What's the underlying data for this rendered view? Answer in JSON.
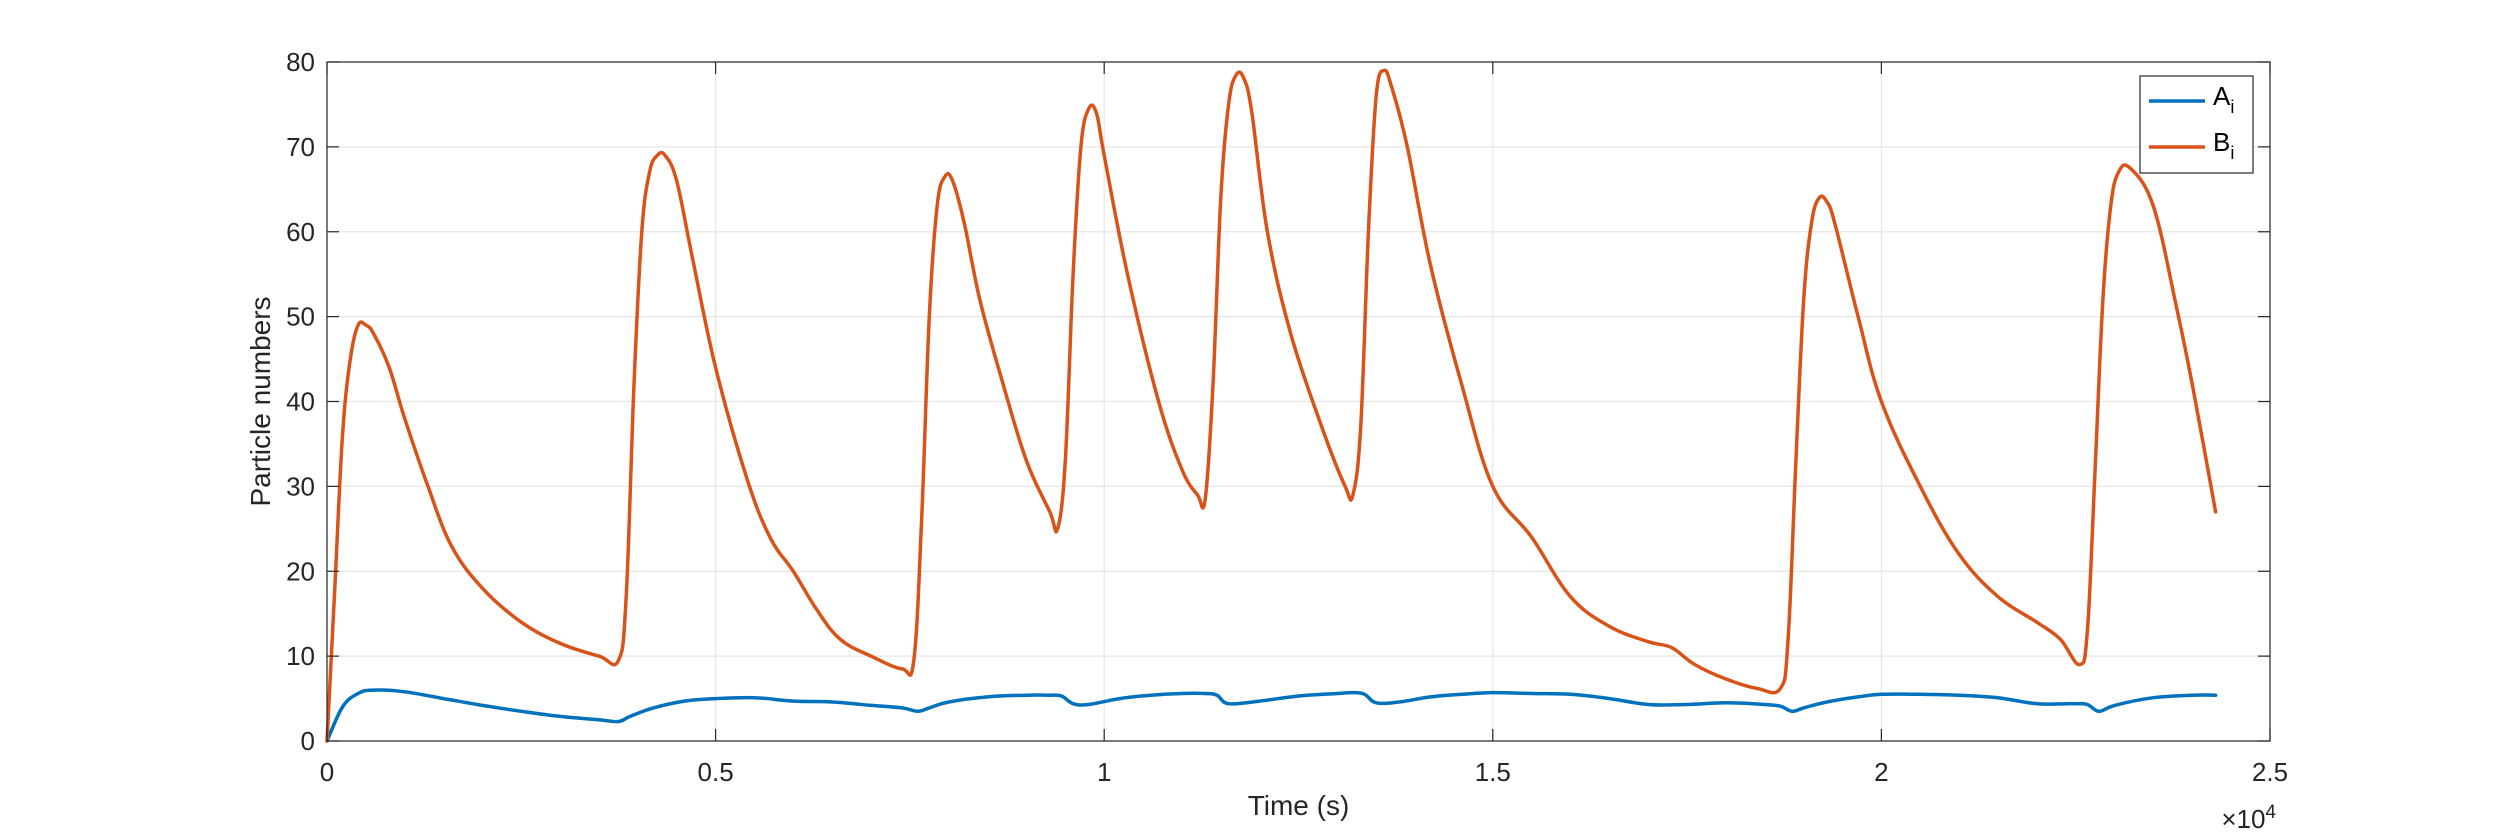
{
  "chart_data": {
    "type": "line",
    "xlabel": "Time (s)",
    "ylabel": "Particle numbers",
    "x_exponent_label": "×10",
    "x_exponent_power": "4",
    "xlim": [
      0,
      25000
    ],
    "ylim": [
      0,
      80
    ],
    "xticks": [
      0,
      5000,
      10000,
      15000,
      20000,
      25000
    ],
    "xtick_labels": [
      "0",
      "0.5",
      "1",
      "1.5",
      "2",
      "2.5"
    ],
    "yticks": [
      0,
      10,
      20,
      30,
      40,
      50,
      60,
      70,
      80
    ],
    "ytick_labels": [
      "0",
      "10",
      "20",
      "30",
      "40",
      "50",
      "60",
      "70",
      "80"
    ],
    "grid": true,
    "legend_position": "top-right",
    "series": [
      {
        "name": "A",
        "subscript": "i",
        "color": "#0072BD",
        "x": [
          0,
          200,
          400,
          600,
          1000,
          1500,
          2000,
          2500,
          3000,
          3500,
          3750,
          3900,
          4200,
          4600,
          5000,
          5500,
          6000,
          6500,
          7000,
          7400,
          7600,
          7750,
          8000,
          8500,
          9000,
          9300,
          9450,
          9600,
          9800,
          10200,
          10600,
          11000,
          11300,
          11450,
          11600,
          12000,
          12500,
          13000,
          13200,
          13350,
          13500,
          13800,
          14200,
          14600,
          15000,
          15500,
          16000,
          16500,
          17000,
          17500,
          18000,
          18500,
          18700,
          18850,
          19000,
          19300,
          19700,
          20000,
          20500,
          21000,
          21500,
          22000,
          22500,
          22650,
          22800,
          23000,
          23500,
          24000,
          24300
        ],
        "y": [
          0,
          4.0,
          5.6,
          6.0,
          5.8,
          5.0,
          4.2,
          3.5,
          2.9,
          2.5,
          2.3,
          2.9,
          3.9,
          4.7,
          5.0,
          5.1,
          4.7,
          4.6,
          4.2,
          3.9,
          3.5,
          3.9,
          4.6,
          5.2,
          5.4,
          5.4,
          5.3,
          4.4,
          4.3,
          5.0,
          5.4,
          5.6,
          5.6,
          5.4,
          4.4,
          4.7,
          5.3,
          5.6,
          5.7,
          5.5,
          4.5,
          4.6,
          5.2,
          5.5,
          5.7,
          5.6,
          5.5,
          5.0,
          4.3,
          4.3,
          4.5,
          4.3,
          4.1,
          3.5,
          3.9,
          4.6,
          5.2,
          5.5,
          5.5,
          5.4,
          5.1,
          4.4,
          4.4,
          4.3,
          3.5,
          4.2,
          5.1,
          5.4,
          5.4
        ]
      },
      {
        "name": "B",
        "subscript": "i",
        "color": "#D95319",
        "x": [
          0,
          100,
          200,
          300,
          400,
          500,
          600,
          800,
          1000,
          1300,
          1600,
          2000,
          2500,
          3000,
          3500,
          3750,
          3850,
          3950,
          4050,
          4150,
          4250,
          4350,
          4500,
          4700,
          5000,
          5400,
          5700,
          6000,
          6300,
          6600,
          7000,
          7400,
          7550,
          7650,
          7750,
          7850,
          7950,
          8050,
          8200,
          8400,
          8700,
          9000,
          9300,
          9400,
          9500,
          9600,
          9700,
          9800,
          9900,
          10000,
          10300,
          10700,
          11000,
          11200,
          11300,
          11400,
          11500,
          11600,
          11700,
          11800,
          11900,
          12100,
          12400,
          12800,
          13100,
          13200,
          13300,
          13400,
          13500,
          13600,
          13700,
          13900,
          14200,
          14600,
          15000,
          15500,
          16000,
          16500,
          17000,
          17300,
          17600,
          18000,
          18400,
          18700,
          18800,
          18900,
          19000,
          19100,
          19200,
          19300,
          19400,
          19700,
          20000,
          20500,
          21000,
          21500,
          22000,
          22300,
          22550,
          22650,
          22750,
          22850,
          22950,
          23050,
          23200,
          23500,
          23800,
          24000,
          24300
        ],
        "y": [
          0,
          18,
          36,
          45,
          49,
          49,
          48,
          44,
          38,
          30,
          23,
          18,
          14,
          11.5,
          10,
          9.5,
          17,
          42,
          60,
          67,
          69,
          69,
          66,
          57,
          44,
          31,
          24,
          20,
          15.5,
          12,
          10,
          8.5,
          9.5,
          26,
          50,
          63,
          66.5,
          66,
          61,
          52,
          42,
          33,
          27,
          25,
          33,
          55,
          70,
          74.5,
          74,
          69,
          55,
          40,
          32,
          29,
          28.5,
          42,
          64,
          75,
          78.5,
          78,
          74,
          60,
          48,
          37,
          30,
          29,
          37,
          60,
          76,
          79,
          77,
          70,
          56,
          42,
          30,
          24,
          17,
          13.5,
          11.7,
          11,
          9,
          7.3,
          6.2,
          6.2,
          12,
          33,
          52,
          61,
          64,
          63.5,
          61,
          50,
          40,
          30,
          22,
          17,
          14,
          12,
          9,
          13,
          32,
          52,
          63,
          67,
          67.5,
          63,
          51,
          42,
          27
        ]
      }
    ]
  }
}
